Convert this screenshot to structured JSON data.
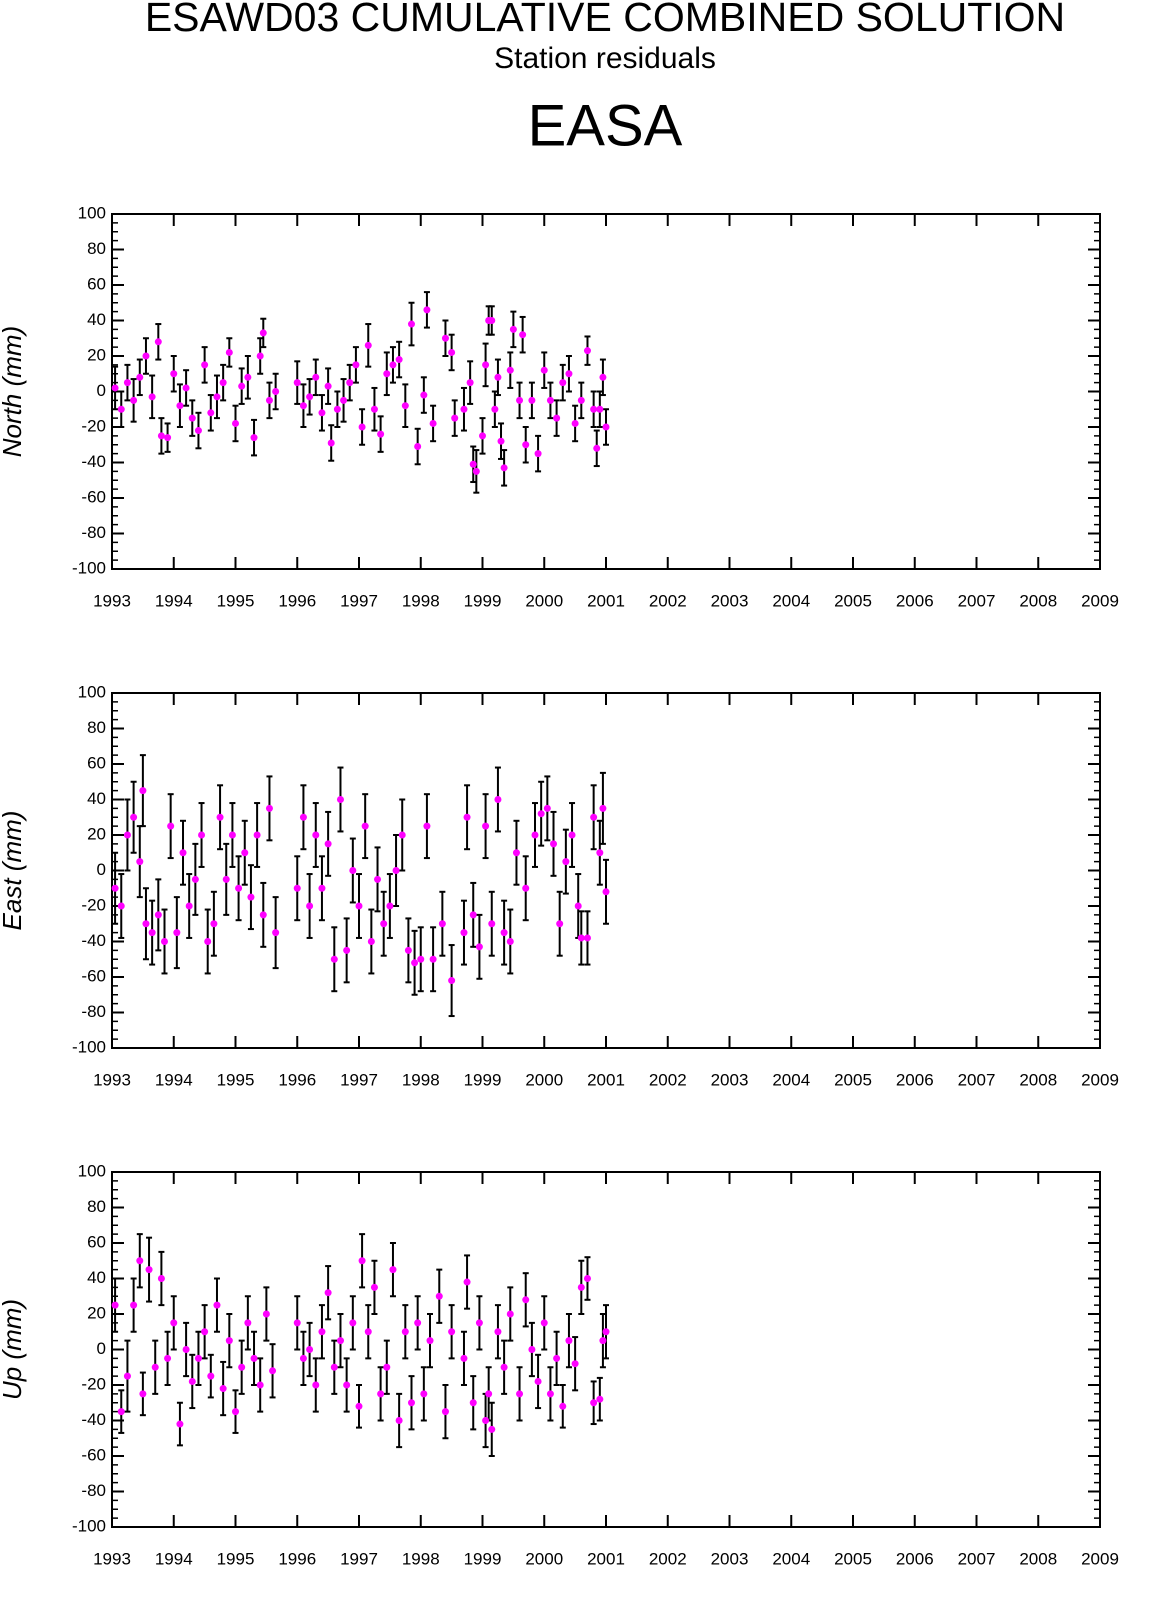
{
  "title": "ESAWD03 CUMULATIVE COMBINED SOLUTION",
  "subtitle": "Station residuals",
  "station": "EASA",
  "chart_data": [
    {
      "type": "scatter",
      "ylabel": "North (mm)",
      "color": "#ff00ff",
      "error_color": "#000000",
      "xlim": [
        1993,
        2009
      ],
      "xticks": [
        1993,
        1994,
        1995,
        1996,
        1997,
        1998,
        1999,
        2000,
        2001,
        2002,
        2003,
        2004,
        2005,
        2006,
        2007,
        2008,
        2009
      ],
      "ylim": [
        -100,
        100
      ],
      "yticks": [
        -100,
        -80,
        -60,
        -40,
        -20,
        0,
        20,
        40,
        60,
        80,
        100
      ],
      "x": [
        1993.05,
        1993.15,
        1993.25,
        1993.35,
        1993.45,
        1993.55,
        1993.65,
        1993.75,
        1993.8,
        1993.9,
        1994.0,
        1994.1,
        1994.2,
        1994.3,
        1994.4,
        1994.5,
        1994.6,
        1994.7,
        1994.8,
        1994.9,
        1995.0,
        1995.1,
        1995.2,
        1995.3,
        1995.4,
        1995.45,
        1995.55,
        1995.65,
        1996.0,
        1996.1,
        1996.2,
        1996.3,
        1996.4,
        1996.5,
        1996.55,
        1996.65,
        1996.75,
        1996.85,
        1996.95,
        1997.05,
        1997.15,
        1997.25,
        1997.35,
        1997.45,
        1997.55,
        1997.65,
        1997.75,
        1997.85,
        1997.95,
        1998.05,
        1998.1,
        1998.2,
        1998.4,
        1998.5,
        1998.55,
        1998.7,
        1998.8,
        1998.85,
        1998.9,
        1999.0,
        1999.05,
        1999.1,
        1999.15,
        1999.2,
        1999.25,
        1999.3,
        1999.35,
        1999.45,
        1999.5,
        1999.6,
        1999.65,
        1999.7,
        1999.8,
        1999.9,
        2000.0,
        2000.1,
        2000.2,
        2000.3,
        2000.4,
        2000.5,
        2000.6,
        2000.7,
        2000.8,
        2000.85,
        2000.9,
        2000.95,
        2001.0
      ],
      "values": [
        2,
        -10,
        5,
        -5,
        8,
        20,
        -3,
        28,
        -25,
        -26,
        10,
        -8,
        2,
        -15,
        -22,
        15,
        -12,
        -3,
        5,
        22,
        -18,
        3,
        8,
        -26,
        20,
        33,
        -5,
        0,
        5,
        -8,
        -3,
        8,
        -12,
        3,
        -29,
        -10,
        -5,
        5,
        15,
        -20,
        26,
        -10,
        -24,
        10,
        15,
        18,
        -8,
        38,
        -31,
        -2,
        46,
        -18,
        30,
        22,
        -15,
        -10,
        5,
        -41,
        -45,
        -25,
        15,
        40,
        40,
        -10,
        8,
        -28,
        -43,
        12,
        35,
        -5,
        32,
        -30,
        -5,
        -35,
        12,
        -5,
        -15,
        5,
        10,
        -18,
        -5,
        23,
        -10,
        -32,
        -10,
        8,
        -20
      ],
      "errors": [
        12,
        10,
        10,
        12,
        10,
        10,
        12,
        10,
        10,
        8,
        10,
        12,
        10,
        10,
        10,
        10,
        10,
        12,
        10,
        8,
        10,
        10,
        12,
        10,
        10,
        8,
        10,
        10,
        12,
        12,
        10,
        10,
        10,
        10,
        10,
        10,
        12,
        10,
        10,
        10,
        12,
        12,
        10,
        12,
        10,
        10,
        12,
        12,
        10,
        10,
        10,
        10,
        10,
        10,
        10,
        12,
        12,
        10,
        12,
        10,
        12,
        8,
        8,
        10,
        10,
        10,
        10,
        10,
        10,
        10,
        10,
        10,
        10,
        10,
        10,
        10,
        10,
        10,
        10,
        10,
        10,
        8,
        10,
        10,
        10,
        10,
        10
      ]
    },
    {
      "type": "scatter",
      "ylabel": "East (mm)",
      "color": "#ff00ff",
      "error_color": "#000000",
      "xlim": [
        1993,
        2009
      ],
      "xticks": [
        1993,
        1994,
        1995,
        1996,
        1997,
        1998,
        1999,
        2000,
        2001,
        2002,
        2003,
        2004,
        2005,
        2006,
        2007,
        2008,
        2009
      ],
      "ylim": [
        -100,
        100
      ],
      "yticks": [
        -100,
        -80,
        -60,
        -40,
        -20,
        0,
        20,
        40,
        60,
        80,
        100
      ],
      "x": [
        1993.05,
        1993.15,
        1993.25,
        1993.35,
        1993.45,
        1993.5,
        1993.55,
        1993.65,
        1993.75,
        1993.85,
        1993.95,
        1994.05,
        1994.15,
        1994.25,
        1994.35,
        1994.45,
        1994.55,
        1994.65,
        1994.75,
        1994.85,
        1994.95,
        1995.05,
        1995.15,
        1995.25,
        1995.35,
        1995.45,
        1995.55,
        1995.65,
        1996.0,
        1996.1,
        1996.2,
        1996.3,
        1996.4,
        1996.5,
        1996.6,
        1996.7,
        1996.8,
        1996.9,
        1997.0,
        1997.1,
        1997.2,
        1997.3,
        1997.4,
        1997.5,
        1997.6,
        1997.7,
        1997.8,
        1997.9,
        1998.0,
        1998.1,
        1998.2,
        1998.35,
        1998.5,
        1998.7,
        1998.75,
        1998.85,
        1998.95,
        1999.05,
        1999.15,
        1999.25,
        1999.35,
        1999.45,
        1999.55,
        1999.7,
        1999.85,
        1999.95,
        2000.05,
        2000.15,
        2000.25,
        2000.35,
        2000.45,
        2000.55,
        2000.6,
        2000.7,
        2000.8,
        2000.9,
        2000.95,
        2001.0
      ],
      "values": [
        -10,
        -20,
        20,
        30,
        5,
        45,
        -30,
        -35,
        -25,
        -40,
        25,
        -35,
        10,
        -20,
        -5,
        20,
        -40,
        -30,
        30,
        -5,
        20,
        -10,
        10,
        -15,
        20,
        -25,
        35,
        -35,
        -10,
        30,
        -20,
        20,
        -10,
        15,
        -50,
        40,
        -45,
        0,
        -20,
        25,
        -40,
        -5,
        -30,
        -20,
        0,
        20,
        -45,
        -52,
        -50,
        25,
        -50,
        -30,
        -62,
        -35,
        30,
        -25,
        -43,
        25,
        -30,
        40,
        -35,
        -40,
        10,
        -10,
        20,
        32,
        35,
        15,
        -30,
        5,
        20,
        -20,
        -38,
        -38,
        30,
        10,
        35,
        -12
      ],
      "errors": [
        20,
        18,
        20,
        20,
        20,
        20,
        20,
        18,
        20,
        18,
        18,
        20,
        18,
        18,
        20,
        18,
        18,
        18,
        18,
        20,
        18,
        18,
        18,
        18,
        18,
        18,
        18,
        20,
        18,
        18,
        18,
        18,
        18,
        18,
        18,
        18,
        18,
        18,
        18,
        18,
        18,
        18,
        18,
        18,
        20,
        20,
        18,
        18,
        18,
        18,
        18,
        18,
        20,
        18,
        18,
        18,
        18,
        18,
        18,
        18,
        18,
        18,
        18,
        18,
        18,
        18,
        18,
        18,
        18,
        18,
        18,
        18,
        15,
        15,
        18,
        18,
        20,
        18
      ]
    },
    {
      "type": "scatter",
      "ylabel": "Up (mm)",
      "color": "#ff00ff",
      "error_color": "#000000",
      "xlim": [
        1993,
        2009
      ],
      "xticks": [
        1993,
        1994,
        1995,
        1996,
        1997,
        1998,
        1999,
        2000,
        2001,
        2002,
        2003,
        2004,
        2005,
        2006,
        2007,
        2008,
        2009
      ],
      "ylim": [
        -100,
        100
      ],
      "yticks": [
        -100,
        -80,
        -60,
        -40,
        -20,
        0,
        20,
        40,
        60,
        80,
        100
      ],
      "x": [
        1993.05,
        1993.15,
        1993.25,
        1993.35,
        1993.45,
        1993.5,
        1993.6,
        1993.7,
        1993.8,
        1993.9,
        1994.0,
        1994.1,
        1994.2,
        1994.3,
        1994.4,
        1994.5,
        1994.6,
        1994.7,
        1994.8,
        1994.9,
        1995.0,
        1995.1,
        1995.2,
        1995.3,
        1995.4,
        1995.5,
        1995.6,
        1996.0,
        1996.1,
        1996.2,
        1996.3,
        1996.4,
        1996.5,
        1996.6,
        1996.7,
        1996.8,
        1996.9,
        1997.0,
        1997.05,
        1997.15,
        1997.25,
        1997.35,
        1997.45,
        1997.55,
        1997.65,
        1997.75,
        1997.85,
        1997.95,
        1998.05,
        1998.15,
        1998.3,
        1998.4,
        1998.5,
        1998.7,
        1998.75,
        1998.85,
        1998.95,
        1999.05,
        1999.1,
        1999.15,
        1999.25,
        1999.35,
        1999.45,
        1999.6,
        1999.7,
        1999.8,
        1999.9,
        2000.0,
        2000.1,
        2000.2,
        2000.3,
        2000.4,
        2000.5,
        2000.6,
        2000.7,
        2000.8,
        2000.9,
        2000.95,
        2001.0
      ],
      "values": [
        25,
        -35,
        -15,
        25,
        50,
        -25,
        45,
        -10,
        40,
        -5,
        15,
        -42,
        0,
        -18,
        -5,
        10,
        -15,
        25,
        -22,
        5,
        -35,
        -10,
        15,
        -5,
        -20,
        20,
        -12,
        15,
        -5,
        0,
        -20,
        10,
        32,
        -10,
        5,
        -20,
        15,
        -32,
        50,
        10,
        35,
        -25,
        -10,
        45,
        -40,
        10,
        -30,
        15,
        -25,
        5,
        30,
        -35,
        10,
        -5,
        38,
        -30,
        15,
        -40,
        -25,
        -45,
        10,
        -10,
        20,
        -25,
        28,
        0,
        -18,
        15,
        -25,
        -5,
        -32,
        5,
        -8,
        35,
        40,
        -30,
        -28,
        5,
        10
      ],
      "errors": [
        15,
        12,
        20,
        15,
        15,
        12,
        18,
        15,
        15,
        15,
        15,
        12,
        15,
        15,
        15,
        15,
        12,
        15,
        15,
        15,
        12,
        15,
        15,
        15,
        15,
        15,
        15,
        15,
        15,
        15,
        15,
        15,
        15,
        15,
        15,
        15,
        15,
        12,
        15,
        15,
        15,
        15,
        15,
        15,
        15,
        15,
        15,
        15,
        15,
        15,
        15,
        15,
        15,
        15,
        15,
        15,
        15,
        15,
        15,
        15,
        15,
        15,
        15,
        15,
        15,
        15,
        15,
        15,
        15,
        15,
        12,
        15,
        15,
        15,
        12,
        12,
        12,
        15,
        15
      ]
    }
  ]
}
